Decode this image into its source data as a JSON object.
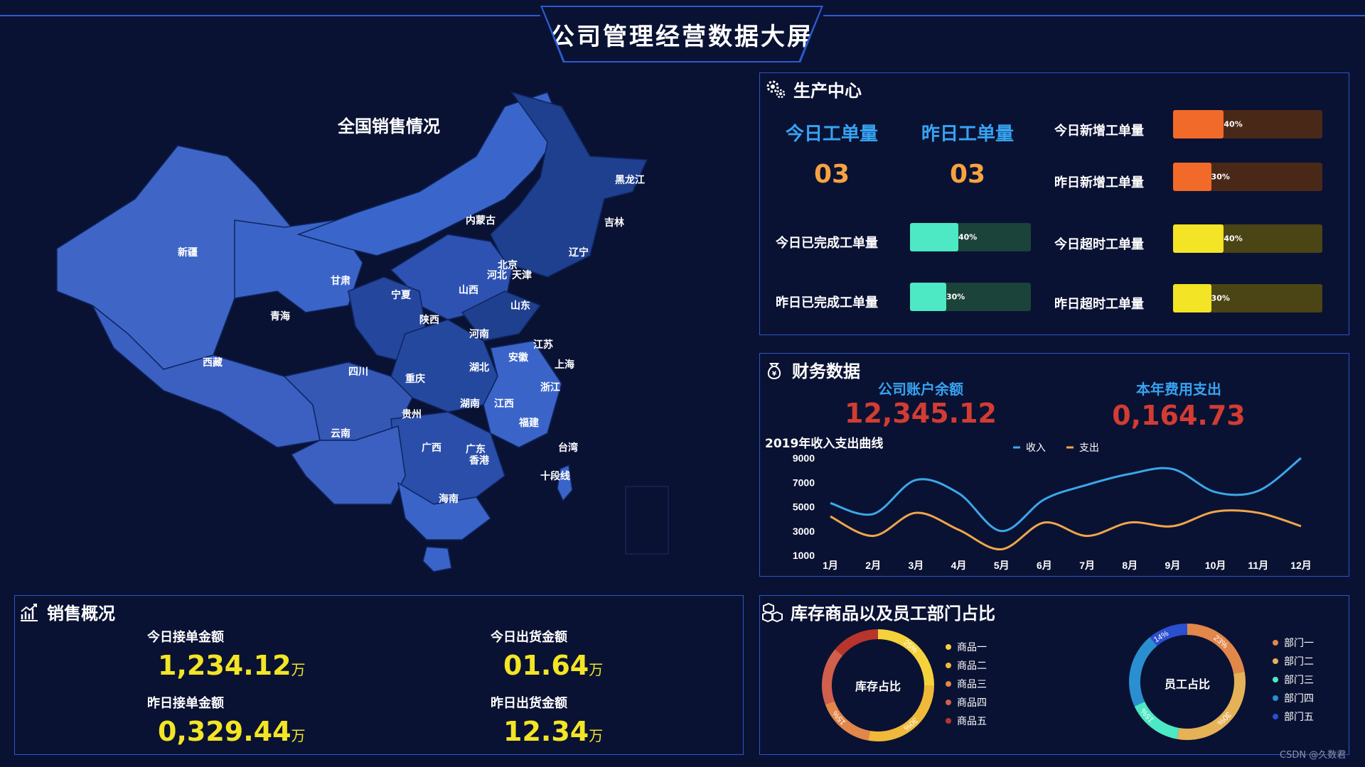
{
  "header": {
    "title": "公司管理经营数据大屏"
  },
  "map": {
    "title": "全国销售情况",
    "provinces": [
      "新疆",
      "西藏",
      "青海",
      "甘肃",
      "内蒙古",
      "黑龙江",
      "吉林",
      "辽宁",
      "北京",
      "天津",
      "河北",
      "山西",
      "宁夏",
      "陕西",
      "山东",
      "河南",
      "江苏",
      "安徽",
      "上海",
      "湖北",
      "四川",
      "重庆",
      "浙江",
      "湖南",
      "江西",
      "贵州",
      "云南",
      "广西",
      "广东",
      "香港",
      "福建",
      "台湾",
      "海南",
      "十段线"
    ]
  },
  "production": {
    "title": "生产中心",
    "today_label": "今日工单量",
    "today_value": "03",
    "yesterday_label": "昨日工单量",
    "yesterday_value": "03",
    "bars": [
      {
        "label": "今日新增工单量",
        "pct_text": "40%",
        "pct": 0.4,
        "fill": "#f26a2a",
        "track": "#4a2818"
      },
      {
        "label": "昨日新增工单量",
        "pct_text": "30%",
        "pct": 0.3,
        "fill": "#f26a2a",
        "track": "#4a2818"
      },
      {
        "label": "今日已完成工单量",
        "pct_text": "40%",
        "pct": 0.4,
        "fill": "#4de9c4",
        "track": "#1b4339"
      },
      {
        "label": "今日超时工单量",
        "pct_text": "40%",
        "pct": 0.4,
        "fill": "#f3e425",
        "track": "#4b4414"
      },
      {
        "label": "昨日已完成工单量",
        "pct_text": "30%",
        "pct": 0.3,
        "fill": "#4de9c4",
        "track": "#1b4339"
      },
      {
        "label": "昨日超时工单量",
        "pct_text": "30%",
        "pct": 0.3,
        "fill": "#f3e425",
        "track": "#4b4414"
      }
    ]
  },
  "finance": {
    "title": "财务数据",
    "balance_label": "公司账户余额",
    "balance_value": "12,345.12",
    "expense_label": "本年费用支出",
    "expense_value": "0,164.73"
  },
  "chart_data": {
    "type": "line",
    "title": "2019年收入支出曲线",
    "categories": [
      "1月",
      "2月",
      "3月",
      "4月",
      "5月",
      "6月",
      "7月",
      "8月",
      "9月",
      "10月",
      "11月",
      "12月"
    ],
    "ylim": [
      1000,
      9000
    ],
    "yticks": [
      "9000",
      "7000",
      "5000",
      "3000",
      "1000"
    ],
    "legend_position": "top",
    "series": [
      {
        "name": "收入",
        "color": "#3ba7e8",
        "values": [
          5300,
          4400,
          7200,
          6100,
          3000,
          5600,
          6800,
          7700,
          8100,
          6200,
          6300,
          9000
        ]
      },
      {
        "name": "支出",
        "color": "#f0a64a",
        "values": [
          4200,
          2600,
          4500,
          3100,
          1500,
          3700,
          2600,
          3700,
          3400,
          4600,
          4500,
          3400
        ]
      }
    ]
  },
  "sales": {
    "title": "销售概况",
    "today_order_label": "今日接单金额",
    "today_order_value": "1,234.12",
    "today_ship_label": "今日出货金额",
    "today_ship_value": "01.64",
    "yesterday_order_label": "昨日接单金额",
    "yesterday_order_value": "0,329.44",
    "yesterday_ship_label": "昨日出货金额",
    "yesterday_ship_value": "12.34",
    "unit": "万"
  },
  "inventory": {
    "title": "库存商品以及员工部门占比",
    "stock_center": "库存占比",
    "stock_legend": [
      {
        "name": "商品一",
        "color": "#f5d23c"
      },
      {
        "name": "商品二",
        "color": "#f0b93a"
      },
      {
        "name": "商品三",
        "color": "#e2874a"
      },
      {
        "name": "商品四",
        "color": "#d0604c"
      },
      {
        "name": "商品五",
        "color": "#b8352c"
      }
    ],
    "stock_slice_labels": [
      "25%",
      "30%",
      "15%"
    ],
    "staff_center": "员工占比",
    "staff_legend": [
      {
        "name": "部门一",
        "color": "#e2874a"
      },
      {
        "name": "部门二",
        "color": "#e6b257"
      },
      {
        "name": "部门三",
        "color": "#4de9c4"
      },
      {
        "name": "部门四",
        "color": "#2a8fd0"
      },
      {
        "name": "部门五",
        "color": "#2a4fd0"
      }
    ],
    "staff_slice_labels": [
      "14%",
      "23%",
      "30%",
      "15%"
    ]
  },
  "watermark": "CSDN @久数君"
}
